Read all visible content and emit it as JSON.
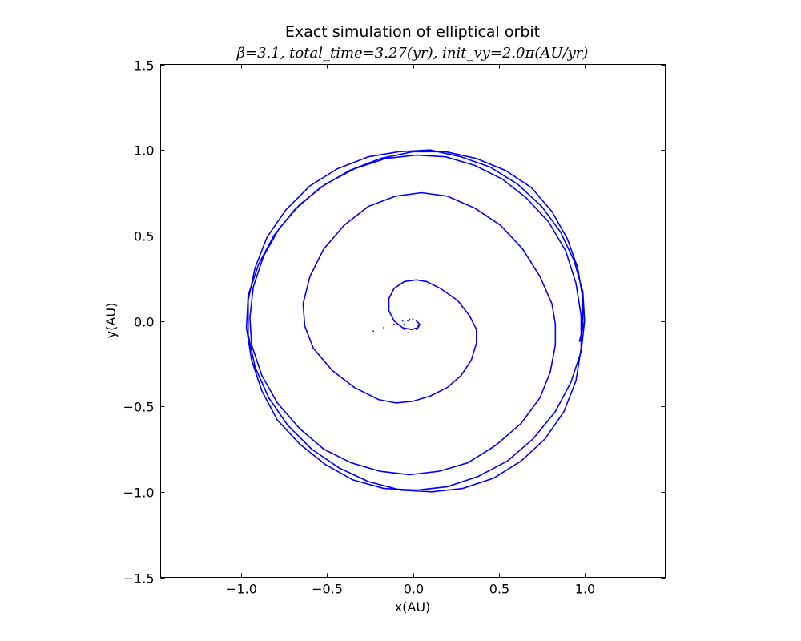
{
  "chart_data": {
    "type": "line",
    "title": "Exact simulation of elliptical orbit",
    "subtitle": "β=3.1, total_time=3.27(yr), init_vy=2.0π(AU/yr)",
    "xlabel": "x(AU)",
    "ylabel": "y(AU)",
    "xlim": [
      -1.47,
      1.47
    ],
    "ylim": [
      -1.5,
      1.5
    ],
    "xticks": [
      -1.0,
      -0.5,
      0.0,
      0.5,
      1.0
    ],
    "xtick_labels": [
      "−1.0",
      "−0.5",
      "0.0",
      "0.5",
      "1.0"
    ],
    "yticks": [
      -1.5,
      -1.0,
      -0.5,
      0.0,
      0.5,
      1.0,
      1.5
    ],
    "ytick_labels": [
      "−1.5",
      "−1.0",
      "−0.5",
      "0.0",
      "0.5",
      "1.0",
      "1.5"
    ],
    "grid": false,
    "legend": false,
    "series": [
      {
        "color": "#0000ff",
        "style": "dotted",
        "x": [
          -0.23,
          -0.17,
          -0.11,
          -0.06,
          -0.02,
          0.0,
          0.03,
          0.03,
          0.02,
          0.0,
          -0.03,
          -0.05,
          -0.05,
          -0.03,
          0.0,
          0.02
        ],
        "y": [
          -0.06,
          -0.04,
          -0.02,
          0.0,
          0.01,
          0.01,
          -0.01,
          -0.03,
          -0.05,
          -0.07,
          -0.07,
          -0.05,
          -0.02,
          0.0,
          0.01,
          0.0
        ]
      },
      {
        "color": "#0000ff",
        "style": "solid",
        "x": [
          0.02,
          0.04,
          0.03,
          -0.01,
          -0.06,
          -0.11,
          -0.14,
          -0.14,
          -0.11,
          -0.05,
          0.02,
          0.08,
          0.16,
          0.26,
          0.33,
          0.37,
          0.37,
          0.34,
          0.28,
          0.2,
          0.1,
          0.0,
          -0.1,
          -0.2,
          -0.34,
          -0.47,
          -0.58,
          -0.63,
          -0.64,
          -0.6,
          -0.52,
          -0.4,
          -0.26,
          -0.1,
          0.05,
          0.2,
          0.36,
          0.51,
          0.64,
          0.74,
          0.81,
          0.83,
          0.83,
          0.8,
          0.74,
          0.63,
          0.48,
          0.32,
          0.15,
          -0.02,
          -0.19,
          -0.36,
          -0.52,
          -0.66,
          -0.79,
          -0.88,
          -0.94,
          -0.95,
          -0.93,
          -0.87,
          -0.78,
          -0.66,
          -0.51,
          -0.34,
          -0.16,
          0.02,
          0.19,
          0.36,
          0.52,
          0.66,
          0.79,
          0.89,
          0.95,
          0.98,
          0.98,
          0.95,
          0.88,
          0.77,
          0.63,
          0.47,
          0.29,
          0.11,
          -0.07,
          -0.26,
          -0.43,
          -0.59,
          -0.73,
          -0.84,
          -0.92,
          -0.96,
          -0.96,
          -0.92,
          -0.85,
          -0.74,
          -0.6,
          -0.44,
          -0.26,
          -0.08,
          0.1,
          0.28,
          0.45,
          0.61,
          0.75,
          0.86,
          0.94,
          0.99,
          1.0,
          0.98,
          0.92,
          0.83,
          0.7,
          0.55,
          0.38,
          0.2,
          0.02,
          -0.17,
          -0.35,
          -0.51,
          -0.66,
          -0.79,
          -0.88,
          -0.94,
          -0.97,
          -0.96,
          -0.9,
          -0.81,
          -0.69,
          -0.54,
          -0.37,
          -0.19,
          0.0,
          0.19,
          0.37,
          0.54,
          0.69,
          0.81,
          0.9,
          0.96,
          0.99,
          0.99,
          0.97
        ],
        "y": [
          0.0,
          -0.02,
          -0.04,
          -0.05,
          -0.04,
          0.0,
          0.06,
          0.13,
          0.19,
          0.23,
          0.24,
          0.23,
          0.19,
          0.12,
          0.03,
          -0.05,
          -0.13,
          -0.23,
          -0.32,
          -0.39,
          -0.44,
          -0.47,
          -0.48,
          -0.46,
          -0.39,
          -0.29,
          -0.16,
          -0.03,
          0.1,
          0.26,
          0.42,
          0.56,
          0.67,
          0.73,
          0.75,
          0.73,
          0.66,
          0.56,
          0.42,
          0.26,
          0.1,
          -0.02,
          -0.14,
          -0.3,
          -0.45,
          -0.6,
          -0.73,
          -0.83,
          -0.88,
          -0.9,
          -0.88,
          -0.83,
          -0.75,
          -0.63,
          -0.48,
          -0.32,
          -0.14,
          0.02,
          0.2,
          0.38,
          0.54,
          0.68,
          0.8,
          0.89,
          0.95,
          0.97,
          0.96,
          0.91,
          0.83,
          0.72,
          0.58,
          0.41,
          0.22,
          0.03,
          -0.16,
          -0.35,
          -0.53,
          -0.69,
          -0.82,
          -0.92,
          -0.98,
          -1.0,
          -0.99,
          -0.94,
          -0.86,
          -0.75,
          -0.61,
          -0.45,
          -0.27,
          -0.08,
          0.12,
          0.31,
          0.49,
          0.65,
          0.79,
          0.89,
          0.96,
          0.99,
          1.0,
          0.96,
          0.9,
          0.8,
          0.67,
          0.52,
          0.35,
          0.17,
          0.0,
          -0.18,
          -0.36,
          -0.53,
          -0.69,
          -0.82,
          -0.91,
          -0.97,
          -0.99,
          -0.98,
          -0.93,
          -0.84,
          -0.72,
          -0.58,
          -0.41,
          -0.23,
          -0.04,
          0.15,
          0.33,
          0.5,
          0.65,
          0.78,
          0.88,
          0.95,
          0.99,
          0.99,
          0.95,
          0.88,
          0.78,
          0.64,
          0.48,
          0.31,
          0.13,
          -0.04,
          -0.12
        ]
      }
    ]
  }
}
